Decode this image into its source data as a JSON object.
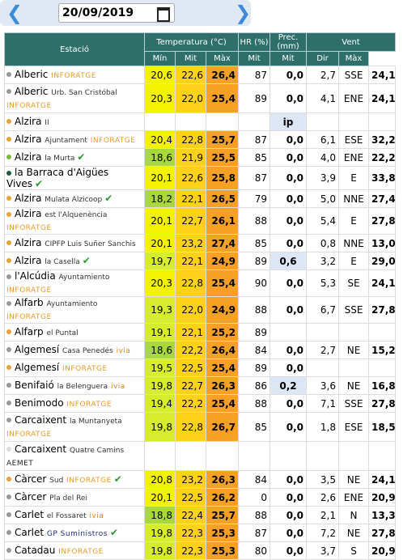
{
  "header": {
    "date": "20/09/2019"
  },
  "table": {
    "group_headers": [
      "Estació",
      "Temperatura (°C)",
      "HR (%)",
      "Prec. (mm)",
      "Vent"
    ],
    "sub_headers": [
      "Mín",
      "Mit",
      "Màx",
      "Mit",
      "Mit",
      "Dir",
      "Màx"
    ],
    "rows": [
      {
        "name": "Alberic",
        "place": "",
        "tag": "INFORATGE",
        "tag_color": "#e89a2a",
        "dot": "#999",
        "check": false,
        "tall": false,
        "values": [
          "20,6",
          "22,6",
          "26,4",
          "87",
          "0,0",
          "2,7",
          "SSE",
          "24,1"
        ]
      },
      {
        "name": "Alberic",
        "place": "Urb. San Cristóbal",
        "tag": "INFORATGE",
        "tag_color": "#e89a2a",
        "dot": "#999",
        "check": false,
        "tall": true,
        "values": [
          "20,3",
          "22,0",
          "25,4",
          "89",
          "0,0",
          "4,1",
          "ENE",
          "24,1"
        ]
      },
      {
        "name": "Alzira",
        "place": "II",
        "tag": "",
        "tag_color": "#e89a2a",
        "dot": "#e8a33a",
        "check": false,
        "tall": false,
        "values": [
          null,
          null,
          null,
          null,
          "ip",
          null,
          null,
          null
        ]
      },
      {
        "name": "Alzira",
        "place": "Ajuntament",
        "tag": "INFORATGE",
        "tag_color": "#e89a2a",
        "dot": "#e8a33a",
        "check": false,
        "tall": false,
        "values": [
          "20,4",
          "22,8",
          "25,7",
          "87",
          "0,0",
          "6,1",
          "ESE",
          "32,2"
        ]
      },
      {
        "name": "Alzira",
        "place": "la Murta",
        "tag": "",
        "tag_color": "#e89a2a",
        "dot": "#7cba3a",
        "check": true,
        "tall": false,
        "values": [
          "18,6",
          "21,9",
          "25,5",
          "85",
          "0,0",
          "4,0",
          "ENE",
          "22,2"
        ]
      },
      {
        "name": "la Barraca d'Aigües Vives",
        "place": "",
        "tag": "",
        "tag_color": "#e89a2a",
        "dot": "#1f5a3a",
        "check": true,
        "tall": false,
        "values": [
          "20,1",
          "22,6",
          "25,8",
          "87",
          "0,0",
          "3,9",
          "E",
          "33,8"
        ]
      },
      {
        "name": "Alzira",
        "place": "Mulata Alzicoop",
        "tag": "",
        "tag_color": "#e89a2a",
        "dot": "#e8a33a",
        "check": true,
        "tall": false,
        "values": [
          "18,2",
          "22,1",
          "26,5",
          "79",
          "0,0",
          "5,0",
          "NNE",
          "27,4"
        ]
      },
      {
        "name": "Alzira",
        "place": "est l'Alquenència",
        "tag": "INFORATGE",
        "tag_color": "#e89a2a",
        "dot": "#e8a33a",
        "check": false,
        "tall": false,
        "values": [
          "20,1",
          "22,7",
          "26,1",
          "88",
          "0,0",
          "5,4",
          "E",
          "27,8"
        ]
      },
      {
        "name": "Alzira",
        "place": "CIPFP Luis Suñer Sanchis",
        "tag": "",
        "tag_color": "#e89a2a",
        "dot": "#e8a33a",
        "check": false,
        "tall": false,
        "values": [
          "20,1",
          "23,2",
          "27,4",
          "85",
          "0,0",
          "0,8",
          "NNE",
          "13,0"
        ]
      },
      {
        "name": "Alzira",
        "place": "la Casella",
        "tag": "",
        "tag_color": "#e89a2a",
        "dot": "#e8a33a",
        "check": true,
        "tall": false,
        "values": [
          "19,7",
          "22,1",
          "24,9",
          "89",
          "0,6",
          "3,2",
          "E",
          "29,0"
        ]
      },
      {
        "name": "l'Alcúdia",
        "place": "Ayuntamiento",
        "tag": "INFORATGE",
        "tag_color": "#e89a2a",
        "dot": "#999",
        "check": false,
        "tall": false,
        "values": [
          "20,3",
          "22,8",
          "25,4",
          "90",
          "0,0",
          "5,3",
          "SE",
          "24,1"
        ]
      },
      {
        "name": "Alfarb",
        "place": "Ayuntamiento",
        "tag": "INFORATGE",
        "tag_color": "#e89a2a",
        "dot": "#999",
        "check": false,
        "tall": false,
        "values": [
          "19,3",
          "22,0",
          "24,9",
          "88",
          "0,0",
          "6,7",
          "SSE",
          "27,8"
        ]
      },
      {
        "name": "Alfarp",
        "place": "el Puntal",
        "tag": "",
        "tag_color": "#e89a2a",
        "dot": "#e8a33a",
        "check": false,
        "tall": false,
        "values": [
          "19,1",
          "22,1",
          "25,2",
          "89",
          null,
          null,
          null,
          null
        ]
      },
      {
        "name": "Algemesí",
        "place": "Casa Penedés",
        "tag": "ivia",
        "tag_color": "#d68a10",
        "dot": "#999",
        "check": false,
        "tall": false,
        "values": [
          "18,6",
          "22,2",
          "26,4",
          "84",
          "0,0",
          "2,7",
          "NE",
          "15,2"
        ]
      },
      {
        "name": "Algemesí",
        "place": "",
        "tag": "INFORATGE",
        "tag_color": "#e89a2a",
        "dot": "#e8a33a",
        "check": false,
        "tall": false,
        "values": [
          "19,5",
          "22,5",
          "25,4",
          "89",
          "0,0",
          null,
          null,
          null
        ]
      },
      {
        "name": "Benifaió",
        "place": "la Belenguera",
        "tag": "ivia",
        "tag_color": "#d68a10",
        "dot": "#999",
        "check": false,
        "tall": false,
        "values": [
          "19,8",
          "22,7",
          "26,3",
          "86",
          "0,2",
          "3,6",
          "NE",
          "16,8"
        ]
      },
      {
        "name": "Benimodo",
        "place": "",
        "tag": "INFORATGE",
        "tag_color": "#e89a2a",
        "dot": "#999",
        "check": false,
        "tall": false,
        "values": [
          "19,4",
          "22,2",
          "25,4",
          "88",
          "0,0",
          "7,1",
          "SSE",
          "27,8"
        ]
      },
      {
        "name": "Carcaixent",
        "place": "la Muntanyeta",
        "tag": "INFORATGE",
        "tag_color": "#e89a2a",
        "dot": "#999",
        "check": false,
        "tall": true,
        "values": [
          "19,8",
          "22,8",
          "26,7",
          "85",
          "0,0",
          "1,8",
          "ESE",
          "18,5"
        ]
      },
      {
        "name": "Carcaixent",
        "place": "Quatre Camins",
        "tag": "AEMET",
        "tag_color": "#222",
        "dot": "#ddd",
        "check": false,
        "tall": true,
        "values": [
          null,
          null,
          null,
          null,
          null,
          null,
          null,
          null
        ]
      },
      {
        "name": "Càrcer",
        "place": "Sud",
        "tag": "INFORATGE",
        "tag_color": "#e89a2a",
        "dot": "#e8a33a",
        "check": true,
        "tall": false,
        "values": [
          "20,8",
          "23,2",
          "26,3",
          "84",
          "0,0",
          "3,5",
          "NE",
          "24,1"
        ]
      },
      {
        "name": "Càrcer",
        "place": "Pla del Rei",
        "tag": "",
        "tag_color": "#e89a2a",
        "dot": "#999",
        "check": false,
        "tall": false,
        "values": [
          "20,1",
          "22,5",
          "26,2",
          "0",
          "0,0",
          "2,6",
          "ENE",
          "20,9"
        ]
      },
      {
        "name": "Carlet",
        "place": "el Fossaret",
        "tag": "ivia",
        "tag_color": "#d68a10",
        "dot": "#999",
        "check": false,
        "tall": false,
        "values": [
          "18,8",
          "22,4",
          "25,7",
          "88",
          "0,0",
          "2,1",
          "N",
          "13,3"
        ]
      },
      {
        "name": "Carlet",
        "place": "",
        "tag": "GP Suministros",
        "tag_color": "#1a2a8a",
        "dot": "#999",
        "check": true,
        "tall": false,
        "values": [
          "19,8",
          "22,3",
          "25,3",
          "87",
          "0,0",
          "7,2",
          "NE",
          "27,8"
        ]
      },
      {
        "name": "Catadau",
        "place": "",
        "tag": "INFORATGE",
        "tag_color": "#e89a2a",
        "dot": "#999",
        "check": false,
        "tall": false,
        "values": [
          "19,8",
          "22,3",
          "25,3",
          "80",
          "0,0",
          "3,7",
          "S",
          "20,9"
        ]
      }
    ]
  }
}
